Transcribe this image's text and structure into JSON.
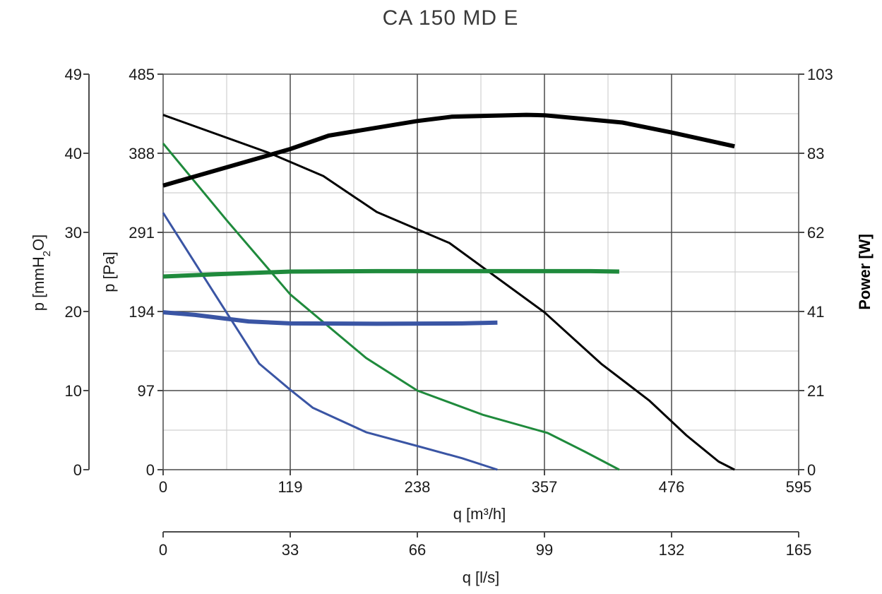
{
  "chart_data": {
    "type": "line",
    "title": "CA 150 MD E",
    "x_primary": {
      "label": "q [m³/h]",
      "range": [
        0,
        595
      ],
      "ticks": [
        "0",
        "119",
        "238",
        "357",
        "476",
        "595"
      ],
      "minor_step": 59.5
    },
    "x_secondary": {
      "label": "q [l/s]",
      "range": [
        0,
        165
      ],
      "ticks": [
        "0",
        "33",
        "66",
        "99",
        "132",
        "165"
      ]
    },
    "y_pa": {
      "label": "p [Pa]",
      "range": [
        0,
        485
      ],
      "ticks": [
        "0",
        "97",
        "194",
        "291",
        "388",
        "485"
      ]
    },
    "y_mmh2o": {
      "label_prefix": "p [mmH",
      "label_sub": "2",
      "label_suffix": "O]",
      "range": [
        0,
        49
      ],
      "ticks": [
        "0",
        "10",
        "20",
        "30",
        "40",
        "49"
      ]
    },
    "y_power": {
      "label": "Power [W]",
      "range": [
        0,
        103
      ],
      "ticks": [
        "0",
        "21",
        "41",
        "62",
        "83",
        "103"
      ]
    },
    "grid": true,
    "colors": {
      "black": "#000000",
      "green": "#1f8a3c",
      "blue": "#3a55a4",
      "grid_major": "#4a4a4a",
      "grid_minor": "#d0d0d0"
    },
    "pressure_series": [
      {
        "color": "black",
        "x": [
          0,
          100,
          150,
          200,
          268,
          357,
          410,
          455,
          490,
          520,
          535
        ],
        "y": [
          435,
          388,
          360,
          316,
          278,
          193,
          130,
          85,
          42,
          10,
          0
        ]
      },
      {
        "color": "green",
        "x": [
          0,
          60,
          119,
          190,
          238,
          300,
          360,
          395,
          427
        ],
        "y": [
          400,
          305,
          215,
          137,
          97,
          67,
          45,
          22,
          0
        ]
      },
      {
        "color": "blue",
        "x": [
          0,
          50,
          90,
          119,
          140,
          190,
          238,
          280,
          313
        ],
        "y": [
          315,
          212,
          130,
          98,
          76,
          46,
          29,
          14,
          0
        ]
      }
    ],
    "power_series": [
      {
        "color": "black",
        "x": [
          0,
          119,
          155,
          238,
          270,
          340,
          357,
          430,
          476,
          535
        ],
        "y": [
          74,
          83.5,
          87,
          90.8,
          91.9,
          92.4,
          92.3,
          90.4,
          87.8,
          84.2
        ]
      },
      {
        "color": "green",
        "x": [
          0,
          50,
          119,
          200,
          300,
          400,
          427
        ],
        "y": [
          50.3,
          50.9,
          51.6,
          51.7,
          51.7,
          51.7,
          51.6
        ]
      },
      {
        "color": "blue",
        "x": [
          0,
          30,
          80,
          119,
          200,
          280,
          313
        ],
        "y": [
          41,
          40.3,
          38.6,
          38.1,
          38.0,
          38.1,
          38.3
        ]
      }
    ]
  }
}
